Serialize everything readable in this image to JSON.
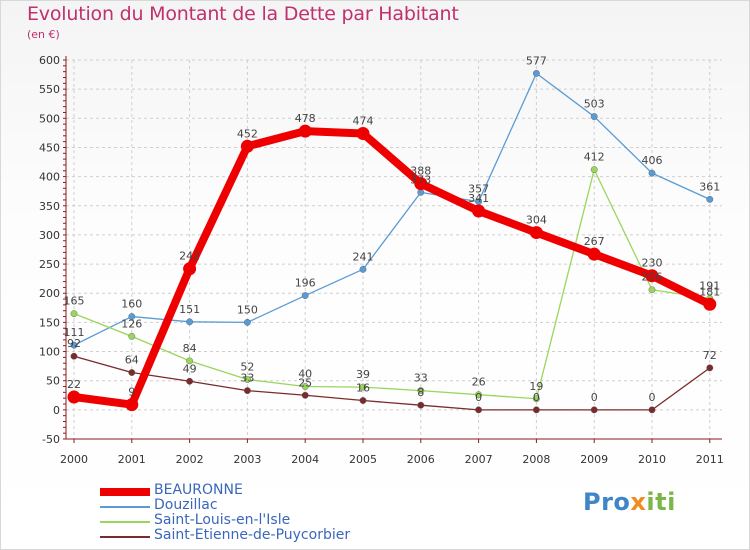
{
  "title": "Evolution du Montant de la Dette par Habitant",
  "subtitle": "(en €)",
  "logo": {
    "part1": "Pro",
    "part2": "x",
    "part3": "iti"
  },
  "colors": {
    "title": "#c0306e",
    "axis": "#8a1a1a",
    "grid": "#cfcfcf",
    "legend_text": "#3a67bb"
  },
  "chart_data": {
    "type": "line",
    "title": "Evolution du Montant de la Dette par Habitant",
    "ylabel": "(en €)",
    "x": [
      "2000",
      "2001",
      "2002",
      "2003",
      "2004",
      "2005",
      "2006",
      "2007",
      "2008",
      "2009",
      "2010",
      "2011"
    ],
    "ylim": [
      -50,
      600
    ],
    "yticks": [
      "600",
      "550",
      "500",
      "450",
      "400",
      "350",
      "300",
      "250",
      "200",
      "150",
      "100",
      "50",
      "0",
      "-50"
    ],
    "grid": "dashed",
    "legend_position": "bottom-left",
    "series": [
      {
        "name": "BEAURONNE",
        "color": "#ee0000",
        "values": [
          22,
          9,
          242,
          452,
          478,
          474,
          388,
          341,
          304,
          267,
          230,
          181
        ],
        "labels": [
          "22",
          "9",
          "242",
          "452",
          "478",
          "474",
          "388",
          "341",
          "304",
          "267",
          "230",
          "181"
        ]
      },
      {
        "name": "Douzillac",
        "color": "#5b9bd5",
        "values": [
          111,
          160,
          151,
          150,
          196,
          241,
          373,
          357,
          577,
          503,
          406,
          361
        ],
        "labels": [
          "111",
          "160",
          "151",
          "150",
          "196",
          "241",
          "373",
          "357",
          "577",
          "503",
          "406",
          "361"
        ]
      },
      {
        "name": "Saint-Louis-en-l'Isle",
        "color": "#9bd65c",
        "values": [
          165,
          126,
          84,
          52,
          40,
          39,
          33,
          26,
          19,
          412,
          206,
          191
        ],
        "labels": [
          "165",
          "126",
          "84",
          "52",
          "40",
          "39",
          "33",
          "26",
          "19",
          "412",
          "206",
          "191"
        ]
      },
      {
        "name": "Saint-Etienne-de-Puycorbier",
        "color": "#7a2b2b",
        "values": [
          92,
          64,
          49,
          33,
          25,
          16,
          8,
          0,
          0,
          0,
          0,
          72
        ],
        "labels": [
          "92",
          "64",
          "49",
          "33",
          "25",
          "16",
          "8",
          "0",
          "0",
          "0",
          "0",
          "72"
        ]
      }
    ]
  }
}
